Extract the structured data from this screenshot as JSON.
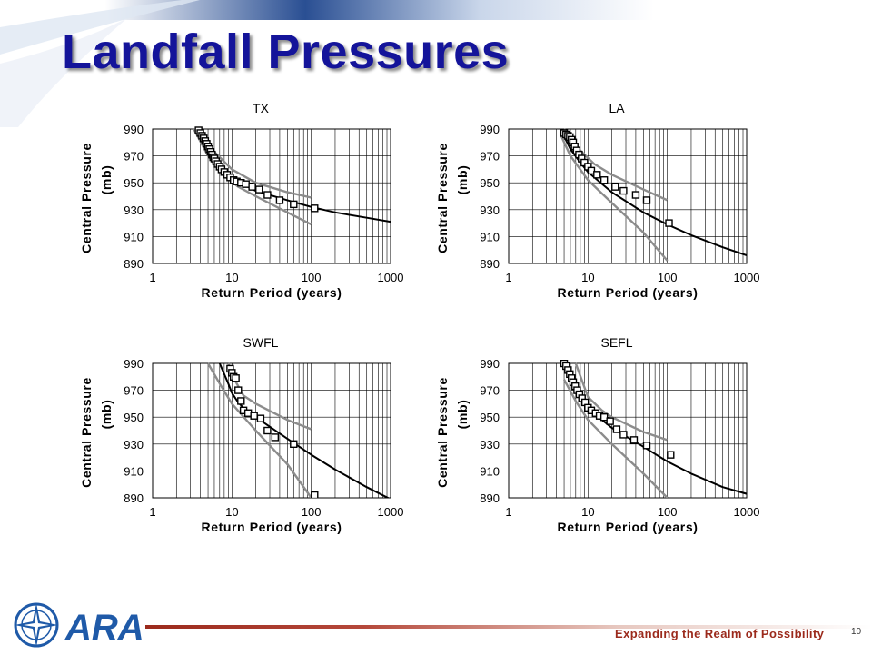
{
  "slide": {
    "title": "Landfall Pressures",
    "tagline": "Expanding the Realm of Possibility",
    "page_number": "10",
    "logo_text": "ARA"
  },
  "colors": {
    "title": "#14149a",
    "fit_curve": "#000000",
    "confidence_band": "#8c8c8c",
    "observations": "#000000",
    "accent": "#9b2a1c",
    "logo_blue": "#1f5aa8"
  },
  "chart_data": [
    {
      "type": "scatter",
      "title": "TX",
      "xlabel": "Return Period (years)",
      "ylabel": "Central Pressure (mb)",
      "x_scale": "log",
      "xlim": [
        1,
        1000
      ],
      "ylim": [
        890,
        990
      ],
      "xticks": [
        "1",
        "10",
        "100",
        "1000"
      ],
      "yticks": [
        "890",
        "910",
        "930",
        "950",
        "970",
        "990"
      ],
      "grid": true,
      "series": [
        {
          "role": "fit",
          "x": [
            3.5,
            5,
            7,
            10,
            20,
            50,
            100,
            200,
            500,
            1000
          ],
          "y": [
            990,
            973,
            961,
            953,
            944,
            937,
            932,
            928,
            924,
            921
          ]
        },
        {
          "role": "upper",
          "x": [
            4,
            6,
            10,
            20,
            50,
            100
          ],
          "y": [
            990,
            973,
            960,
            950,
            943,
            939
          ]
        },
        {
          "role": "lower",
          "x": [
            3.3,
            5,
            8,
            12,
            20,
            50,
            100
          ],
          "y": [
            990,
            970,
            955,
            947,
            940,
            928,
            919
          ]
        },
        {
          "role": "observed",
          "x": [
            3.8,
            4.0,
            4.2,
            4.4,
            4.6,
            4.8,
            5.0,
            5.2,
            5.4,
            5.6,
            5.8,
            6.0,
            6.3,
            6.6,
            7.0,
            7.4,
            8.0,
            8.7,
            9.5,
            10.5,
            11.5,
            13,
            15,
            18,
            22,
            28,
            40,
            60,
            110
          ],
          "y": [
            989,
            987,
            985,
            983,
            981,
            979,
            977,
            975,
            973,
            971,
            969,
            968,
            966,
            964,
            962,
            960,
            958,
            956,
            954,
            952,
            951,
            950,
            949,
            947,
            945,
            941,
            937,
            934,
            931
          ]
        }
      ]
    },
    {
      "type": "scatter",
      "title": "LA",
      "xlabel": "Return Period (years)",
      "ylabel": "Central Pressure (mb)",
      "x_scale": "log",
      "xlim": [
        1,
        1000
      ],
      "ylim": [
        890,
        990
      ],
      "xticks": [
        "1",
        "10",
        "100",
        "1000"
      ],
      "yticks": [
        "890",
        "910",
        "930",
        "950",
        "970",
        "990"
      ],
      "grid": true,
      "series": [
        {
          "role": "fit",
          "x": [
            4.5,
            6,
            8,
            10,
            20,
            50,
            100,
            200,
            500,
            1000
          ],
          "y": [
            990,
            975,
            965,
            958,
            943,
            928,
            919,
            911,
            902,
            896
          ]
        },
        {
          "role": "upper",
          "x": [
            5,
            8,
            12,
            20,
            50,
            100
          ],
          "y": [
            990,
            974,
            964,
            956,
            945,
            937
          ]
        },
        {
          "role": "lower",
          "x": [
            4.5,
            6,
            10,
            20,
            50,
            100
          ],
          "y": [
            986,
            970,
            952,
            935,
            913,
            892
          ]
        },
        {
          "role": "observed",
          "x": [
            5.0,
            5.3,
            5.6,
            5.9,
            6.2,
            6.5,
            6.8,
            7.2,
            7.7,
            8.3,
            9.0,
            10,
            11,
            13,
            16,
            22,
            28,
            40,
            55,
            105
          ],
          "y": [
            987,
            986,
            985,
            984,
            982,
            980,
            977,
            974,
            971,
            968,
            965,
            962,
            959,
            956,
            952,
            947,
            944,
            941,
            937,
            920
          ]
        }
      ]
    },
    {
      "type": "scatter",
      "title": "SWFL",
      "xlabel": "Return Period (years)",
      "ylabel": "Central Pressure (mb)",
      "x_scale": "log",
      "xlim": [
        1,
        1000
      ],
      "ylim": [
        890,
        990
      ],
      "xticks": [
        "1",
        "10",
        "100",
        "1000"
      ],
      "yticks": [
        "890",
        "910",
        "930",
        "950",
        "970",
        "990"
      ],
      "grid": true,
      "series": [
        {
          "role": "fit",
          "x": [
            7,
            9,
            10,
            12,
            15,
            20,
            50,
            100,
            200,
            500,
            1000
          ],
          "y": [
            990,
            975,
            968,
            961,
            955,
            950,
            934,
            922,
            911,
            898,
            889
          ]
        },
        {
          "role": "upper",
          "x": [
            9,
            11,
            14,
            20,
            50,
            100
          ],
          "y": [
            990,
            977,
            966,
            960,
            948,
            941
          ]
        },
        {
          "role": "lower",
          "x": [
            5,
            7,
            10,
            20,
            50,
            100
          ],
          "y": [
            990,
            975,
            960,
            940,
            915,
            890
          ]
        },
        {
          "role": "observed",
          "x": [
            9.5,
            10,
            10.5,
            11.2,
            12,
            13,
            14,
            16,
            19,
            23,
            28,
            35,
            60,
            110
          ],
          "y": [
            986,
            983,
            980,
            979,
            970,
            962,
            955,
            953,
            951,
            949,
            940,
            935,
            930,
            892
          ]
        }
      ]
    },
    {
      "type": "scatter",
      "title": "SEFL",
      "xlabel": "Return Period (years)",
      "ylabel": "Central Pressure (mb)",
      "x_scale": "log",
      "xlim": [
        1,
        1000
      ],
      "ylim": [
        890,
        990
      ],
      "xticks": [
        "1",
        "10",
        "100",
        "1000"
      ],
      "yticks": [
        "890",
        "910",
        "930",
        "950",
        "970",
        "990"
      ],
      "grid": true,
      "series": [
        {
          "role": "fit",
          "x": [
            5,
            6,
            7,
            8,
            10,
            15,
            20,
            50,
            100,
            200,
            500,
            1000
          ],
          "y": [
            990,
            978,
            970,
            965,
            956,
            948,
            942,
            928,
            917,
            908,
            898,
            893
          ]
        },
        {
          "role": "upper",
          "x": [
            7,
            10,
            15,
            20,
            50,
            100
          ],
          "y": [
            990,
            965,
            955,
            950,
            939,
            933
          ]
        },
        {
          "role": "lower",
          "x": [
            5,
            7,
            10,
            20,
            50,
            100
          ],
          "y": [
            978,
            962,
            948,
            930,
            908,
            890
          ]
        },
        {
          "role": "observed",
          "x": [
            5.0,
            5.3,
            5.6,
            5.9,
            6.2,
            6.5,
            6.9,
            7.3,
            7.8,
            8.4,
            9.2,
            10,
            11,
            12.5,
            14,
            16,
            19,
            23,
            28,
            38,
            55,
            110
          ],
          "y": [
            990,
            988,
            985,
            982,
            979,
            976,
            973,
            970,
            967,
            964,
            961,
            957,
            955,
            953,
            951,
            950,
            947,
            941,
            937,
            933,
            929,
            922
          ]
        }
      ]
    }
  ]
}
